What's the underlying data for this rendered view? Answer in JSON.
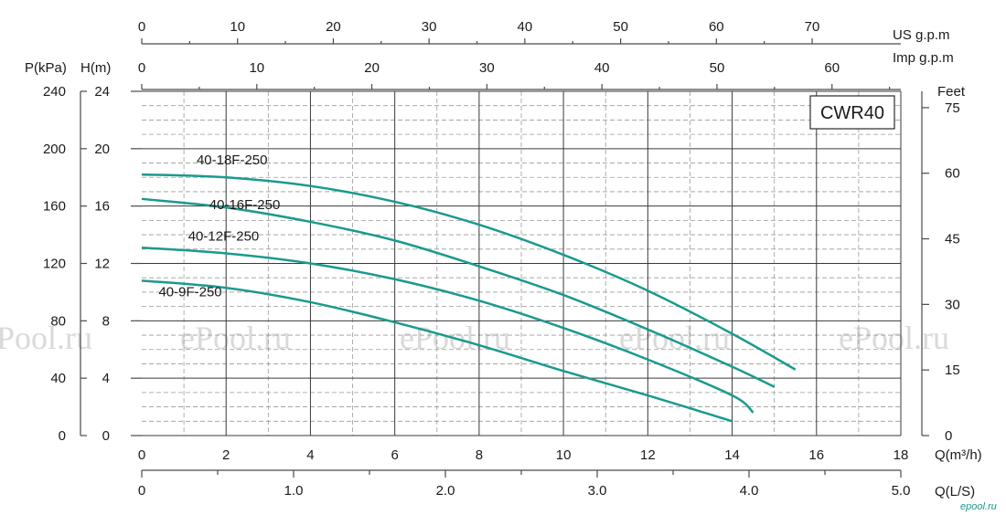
{
  "chart_data": {
    "type": "line",
    "model": "CWR40",
    "x_primary": {
      "label": "Q(m³/h)",
      "ticks": [
        0,
        2,
        4,
        6,
        8,
        10,
        12,
        14,
        16,
        18
      ],
      "range": [
        0,
        18
      ]
    },
    "x_ls": {
      "label": "Q(L/S)",
      "ticks": [
        "0",
        "1.0",
        "2.0",
        "3.0",
        "4.0",
        "5.0"
      ],
      "values": [
        0,
        1,
        2,
        3,
        4,
        5
      ]
    },
    "x_usgpm": {
      "label": "US  g.p.m",
      "ticks": [
        0,
        10,
        20,
        30,
        40,
        50,
        60,
        70
      ]
    },
    "x_impgpm": {
      "label": "Imp  g.p.m",
      "ticks": [
        0,
        10,
        20,
        30,
        40,
        50,
        60
      ]
    },
    "y_head": {
      "label": "H(m)",
      "ticks": [
        0,
        4,
        8,
        12,
        16,
        20,
        24
      ],
      "range": [
        0,
        24
      ]
    },
    "y_pressure": {
      "label": "P(kPa)",
      "ticks": [
        0,
        40,
        80,
        120,
        160,
        200,
        240
      ]
    },
    "y_feet": {
      "label": "Feet",
      "ticks": [
        0,
        15,
        30,
        45,
        60,
        75
      ]
    },
    "grid": true,
    "series": [
      {
        "name": "40-18F-250",
        "x": [
          0,
          2,
          4,
          6,
          8,
          10,
          12,
          14,
          15.5
        ],
        "y": [
          18.2,
          18.0,
          17.4,
          16.3,
          14.7,
          12.6,
          10.1,
          7.1,
          4.6
        ]
      },
      {
        "name": "40-16F-250",
        "x": [
          0,
          2,
          4,
          6,
          8,
          10,
          12,
          14,
          15
        ],
        "y": [
          16.5,
          15.9,
          14.9,
          13.6,
          11.8,
          9.8,
          7.4,
          4.8,
          3.4
        ]
      },
      {
        "name": "40-12F-250",
        "x": [
          0,
          2,
          4,
          6,
          8,
          10,
          12,
          14,
          14.5
        ],
        "y": [
          13.1,
          12.7,
          12.0,
          10.9,
          9.4,
          7.5,
          5.3,
          2.8,
          1.6
        ]
      },
      {
        "name": "40-9F-250",
        "x": [
          0,
          2,
          4,
          6,
          8,
          10,
          12,
          14
        ],
        "y": [
          10.8,
          10.3,
          9.3,
          7.9,
          6.3,
          4.5,
          2.8,
          1.0
        ]
      }
    ]
  },
  "watermark": "ePool.ru",
  "logo": "epool.ru"
}
